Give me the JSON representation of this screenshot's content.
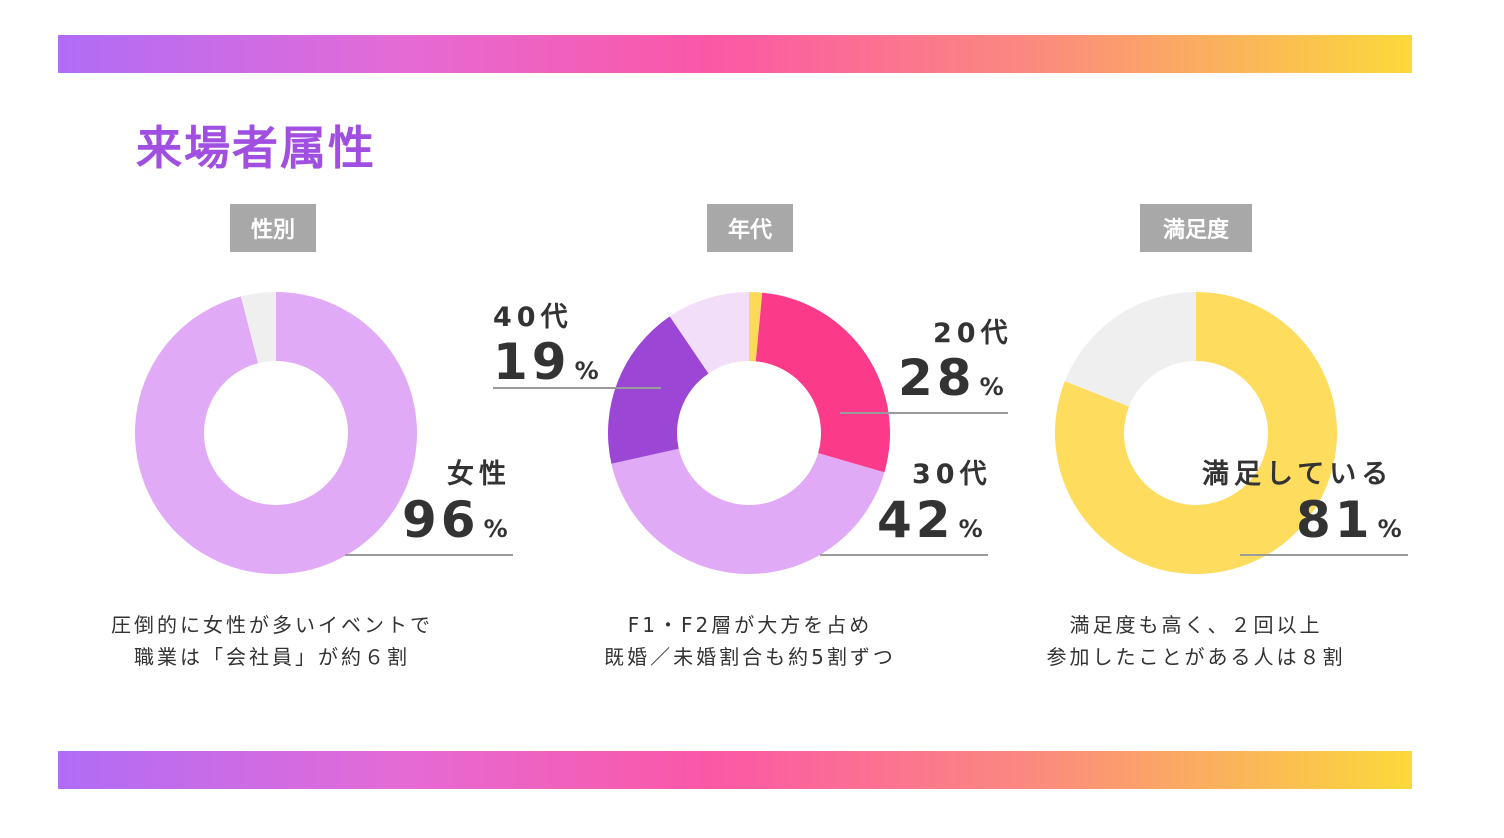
{
  "title": "来場者属性",
  "colors": {
    "title": "#a04fe0",
    "tag_bg": "#a8a8a8",
    "gender_female": "#e0aaf7",
    "gender_other": "#efefef",
    "age_20s": "#fb3b8a",
    "age_30s": "#e0aaf7",
    "age_40s": "#9c46d6",
    "age_other": "#f2def9",
    "age_small": "#fdd95a",
    "sat_satisfied": "#fddc5e",
    "sat_other": "#efefef"
  },
  "chart_data": [
    {
      "type": "pie",
      "title": "性別",
      "slices": [
        {
          "label": "女性",
          "value": 96,
          "color": "#e0aaf7"
        },
        {
          "label": "",
          "value": 4,
          "color": "#efefef"
        }
      ],
      "callouts": [
        {
          "label": "女性",
          "value": "96",
          "unit": "%"
        }
      ],
      "caption": [
        "圧倒的に女性が多いイベントで",
        "職業は「会社員」が約６割"
      ]
    },
    {
      "type": "pie",
      "title": "年代",
      "slices": [
        {
          "label": "",
          "value": 1.5,
          "color": "#fdd95a"
        },
        {
          "label": "20代",
          "value": 28,
          "color": "#fb3b8a"
        },
        {
          "label": "30代",
          "value": 42,
          "color": "#e0aaf7"
        },
        {
          "label": "40代",
          "value": 19,
          "color": "#9c46d6"
        },
        {
          "label": "",
          "value": 9.5,
          "color": "#f2def9"
        }
      ],
      "callouts": [
        {
          "label": "40代",
          "value": "19",
          "unit": "%"
        },
        {
          "label": "20代",
          "value": "28",
          "unit": "%"
        },
        {
          "label": "30代",
          "value": "42",
          "unit": "%"
        }
      ],
      "caption": [
        "F1・F2層が大方を占め",
        "既婚／未婚割合も約5割ずつ"
      ]
    },
    {
      "type": "pie",
      "title": "満足度",
      "slices": [
        {
          "label": "満足している",
          "value": 81,
          "color": "#fddc5e"
        },
        {
          "label": "",
          "value": 19,
          "color": "#efefef"
        }
      ],
      "callouts": [
        {
          "label": "満足している",
          "value": "81",
          "unit": "%"
        }
      ],
      "caption": [
        "満足度も高く、２回以上",
        "参加したことがある人は８割"
      ]
    }
  ]
}
